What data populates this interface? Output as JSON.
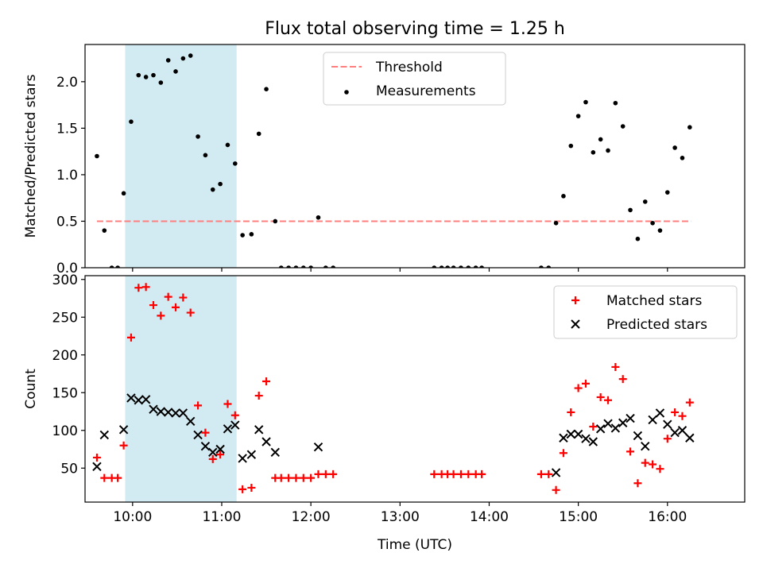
{
  "title": "Flux total observing time = 1.25 h",
  "colors": {
    "threshold": "#ff7f7f",
    "measurement": "#000000",
    "matched": "#ff0000",
    "predicted": "#000000",
    "highlight": "#add8e6"
  },
  "chart_data": [
    {
      "type": "scatter",
      "name": "ratio-panel",
      "ylabel": "Matched/Predicted stars",
      "xlabel": "",
      "xlim": [
        "09:28",
        "16:52"
      ],
      "ylim": [
        0,
        2.4
      ],
      "yticks": [
        0.0,
        0.5,
        1.0,
        1.5,
        2.0
      ],
      "ytick_labels": [
        "0.0",
        "0.5",
        "1.0",
        "1.5",
        "2.0"
      ],
      "highlight_span": [
        "09:55",
        "11:10"
      ],
      "legend": {
        "placement": "top-center",
        "entries": [
          {
            "label": "Threshold",
            "kind": "dashed-line",
            "color": "#ff7f7f"
          },
          {
            "label": "Measurements",
            "kind": "dot",
            "color": "#000000"
          }
        ]
      },
      "threshold": {
        "y": 0.5,
        "x_from": "09:36",
        "x_to": "16:16"
      },
      "series": [
        {
          "name": "Measurements",
          "points": [
            [
              "09:36",
              1.2
            ],
            [
              "09:41",
              0.4
            ],
            [
              "09:46",
              0.0
            ],
            [
              "09:50",
              0.0
            ],
            [
              "09:54",
              0.8
            ],
            [
              "09:59",
              1.57
            ],
            [
              "10:04",
              2.07
            ],
            [
              "10:09",
              2.05
            ],
            [
              "10:14",
              2.07
            ],
            [
              "10:19",
              1.99
            ],
            [
              "10:24",
              2.23
            ],
            [
              "10:29",
              2.11
            ],
            [
              "10:34",
              2.25
            ],
            [
              "10:39",
              2.28
            ],
            [
              "10:44",
              1.41
            ],
            [
              "10:49",
              1.21
            ],
            [
              "10:54",
              0.84
            ],
            [
              "10:59",
              0.9
            ],
            [
              "11:04",
              1.32
            ],
            [
              "11:09",
              1.12
            ],
            [
              "11:14",
              0.35
            ],
            [
              "11:20",
              0.36
            ],
            [
              "11:25",
              1.44
            ],
            [
              "11:30",
              1.92
            ],
            [
              "11:36",
              0.5
            ],
            [
              "11:40",
              0.0
            ],
            [
              "11:45",
              0.0
            ],
            [
              "11:50",
              0.0
            ],
            [
              "11:55",
              0.0
            ],
            [
              "12:00",
              0.0
            ],
            [
              "12:05",
              0.54
            ],
            [
              "12:10",
              0.0
            ],
            [
              "12:15",
              0.0
            ],
            [
              "13:23",
              0.0
            ],
            [
              "13:28",
              0.0
            ],
            [
              "13:32",
              0.0
            ],
            [
              "13:36",
              0.0
            ],
            [
              "13:41",
              0.0
            ],
            [
              "13:46",
              0.0
            ],
            [
              "13:51",
              0.0
            ],
            [
              "13:55",
              0.0
            ],
            [
              "14:35",
              0.0
            ],
            [
              "14:40",
              0.0
            ],
            [
              "14:45",
              0.48
            ],
            [
              "14:50",
              0.77
            ],
            [
              "14:55",
              1.31
            ],
            [
              "15:00",
              1.63
            ],
            [
              "15:05",
              1.78
            ],
            [
              "15:10",
              1.24
            ],
            [
              "15:15",
              1.38
            ],
            [
              "15:20",
              1.26
            ],
            [
              "15:25",
              1.77
            ],
            [
              "15:30",
              1.52
            ],
            [
              "15:35",
              0.62
            ],
            [
              "15:40",
              0.31
            ],
            [
              "15:45",
              0.71
            ],
            [
              "15:50",
              0.48
            ],
            [
              "15:55",
              0.4
            ],
            [
              "16:00",
              0.81
            ],
            [
              "16:05",
              1.29
            ],
            [
              "16:10",
              1.18
            ],
            [
              "16:15",
              1.51
            ]
          ]
        }
      ]
    },
    {
      "type": "scatter",
      "name": "count-panel",
      "ylabel": "Count",
      "xlabel": "Time (UTC)",
      "xlim": [
        "09:28",
        "16:52"
      ],
      "ylim": [
        5,
        305
      ],
      "yticks": [
        50,
        100,
        150,
        200,
        250,
        300
      ],
      "ytick_labels": [
        "50",
        "100",
        "150",
        "200",
        "250",
        "300"
      ],
      "xticks": [
        "10:00",
        "11:00",
        "12:00",
        "13:00",
        "14:00",
        "15:00",
        "16:00"
      ],
      "highlight_span": [
        "09:55",
        "11:10"
      ],
      "legend": {
        "placement": "top-right",
        "entries": [
          {
            "label": "Matched stars",
            "kind": "plus",
            "color": "#ff0000"
          },
          {
            "label": "Predicted stars",
            "kind": "cross",
            "color": "#000000"
          }
        ]
      },
      "series": [
        {
          "name": "Matched stars",
          "points": [
            [
              "09:36",
              64
            ],
            [
              "09:41",
              37
            ],
            [
              "09:46",
              37
            ],
            [
              "09:50",
              37
            ],
            [
              "09:54",
              80
            ],
            [
              "09:59",
              223
            ],
            [
              "10:04",
              289
            ],
            [
              "10:09",
              290
            ],
            [
              "10:14",
              266
            ],
            [
              "10:19",
              252
            ],
            [
              "10:24",
              277
            ],
            [
              "10:29",
              263
            ],
            [
              "10:34",
              276
            ],
            [
              "10:39",
              256
            ],
            [
              "10:44",
              133
            ],
            [
              "10:49",
              97
            ],
            [
              "10:54",
              62
            ],
            [
              "10:59",
              68
            ],
            [
              "11:04",
              135
            ],
            [
              "11:09",
              120
            ],
            [
              "11:14",
              22
            ],
            [
              "11:20",
              24
            ],
            [
              "11:25",
              146
            ],
            [
              "11:30",
              165
            ],
            [
              "11:36",
              37
            ],
            [
              "11:40",
              37
            ],
            [
              "11:45",
              37
            ],
            [
              "11:50",
              37
            ],
            [
              "11:55",
              37
            ],
            [
              "12:00",
              37
            ],
            [
              "12:05",
              42
            ],
            [
              "12:10",
              42
            ],
            [
              "12:15",
              42
            ],
            [
              "13:23",
              42
            ],
            [
              "13:28",
              42
            ],
            [
              "13:32",
              42
            ],
            [
              "13:36",
              42
            ],
            [
              "13:41",
              42
            ],
            [
              "13:46",
              42
            ],
            [
              "13:51",
              42
            ],
            [
              "13:55",
              42
            ],
            [
              "14:35",
              42
            ],
            [
              "14:40",
              42
            ],
            [
              "14:45",
              21
            ],
            [
              "14:50",
              70
            ],
            [
              "14:55",
              124
            ],
            [
              "15:00",
              156
            ],
            [
              "15:05",
              162
            ],
            [
              "15:10",
              105
            ],
            [
              "15:15",
              144
            ],
            [
              "15:20",
              140
            ],
            [
              "15:25",
              184
            ],
            [
              "15:30",
              168
            ],
            [
              "15:35",
              72
            ],
            [
              "15:40",
              30
            ],
            [
              "15:45",
              57
            ],
            [
              "15:50",
              55
            ],
            [
              "15:55",
              49
            ],
            [
              "16:00",
              89
            ],
            [
              "16:05",
              124
            ],
            [
              "16:10",
              119
            ],
            [
              "16:15",
              137
            ]
          ]
        },
        {
          "name": "Predicted stars",
          "points": [
            [
              "09:36",
              52
            ],
            [
              "09:41",
              94
            ],
            [
              "09:54",
              101
            ],
            [
              "09:59",
              143
            ],
            [
              "10:04",
              140
            ],
            [
              "10:09",
              141
            ],
            [
              "10:14",
              128
            ],
            [
              "10:19",
              125
            ],
            [
              "10:24",
              124
            ],
            [
              "10:29",
              123
            ],
            [
              "10:34",
              123
            ],
            [
              "10:39",
              112
            ],
            [
              "10:44",
              94
            ],
            [
              "10:49",
              79
            ],
            [
              "10:54",
              71
            ],
            [
              "10:59",
              75
            ],
            [
              "11:04",
              102
            ],
            [
              "11:09",
              107
            ],
            [
              "11:14",
              63
            ],
            [
              "11:20",
              68
            ],
            [
              "11:25",
              101
            ],
            [
              "11:30",
              85
            ],
            [
              "11:36",
              71
            ],
            [
              "12:05",
              78
            ],
            [
              "14:45",
              44
            ],
            [
              "14:50",
              90
            ],
            [
              "14:55",
              95
            ],
            [
              "15:00",
              95
            ],
            [
              "15:05",
              89
            ],
            [
              "15:10",
              85
            ],
            [
              "15:15",
              102
            ],
            [
              "15:20",
              109
            ],
            [
              "15:25",
              103
            ],
            [
              "15:30",
              110
            ],
            [
              "15:35",
              116
            ],
            [
              "15:40",
              93
            ],
            [
              "15:45",
              79
            ],
            [
              "15:50",
              114
            ],
            [
              "15:55",
              123
            ],
            [
              "16:00",
              108
            ],
            [
              "16:05",
              97
            ],
            [
              "16:10",
              100
            ],
            [
              "16:15",
              90
            ]
          ]
        }
      ]
    }
  ]
}
